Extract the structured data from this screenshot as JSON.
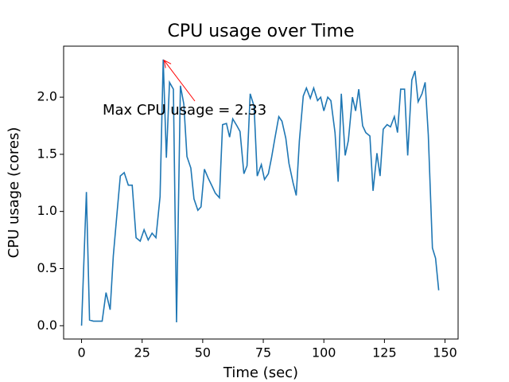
{
  "chart_data": {
    "type": "line",
    "title": "CPU usage over Time",
    "xlabel": "Time (sec)",
    "ylabel": "CPU usage (cores)",
    "annotation": {
      "text": "Max CPU usage = 2.33",
      "color": "#ff0000"
    },
    "xlim": [
      -7.4,
      155.4
    ],
    "ylim": [
      -0.1165,
      2.4465
    ],
    "xticks": [
      0,
      25,
      50,
      75,
      100,
      125,
      150
    ],
    "yticks": [
      {
        "value": 0,
        "label": "0.0"
      },
      0.5,
      {
        "value": 1,
        "label": "1.0"
      },
      1.5,
      {
        "value": 2,
        "label": "2.0"
      }
    ],
    "series": [
      {
        "color": "#1f77b4",
        "x": [
          0,
          2,
          3.3,
          4.9,
          6.5,
          8.5,
          10.1,
          11.8,
          13.1,
          14.7,
          16,
          17.6,
          19.3,
          20.9,
          22.5,
          24.2,
          25.8,
          27.5,
          29.1,
          30.7,
          32.4,
          33.7,
          35,
          36.3,
          37.9,
          39.2,
          40.8,
          42.2,
          43.5,
          45.1,
          46.4,
          48,
          49.3,
          50.7,
          52.3,
          53.9,
          55.2,
          56.9,
          58.2,
          59.8,
          61.1,
          62.4,
          64.1,
          65.4,
          67,
          68.3,
          69.6,
          71.2,
          72.5,
          74.2,
          75.5,
          77.1,
          78.4,
          79.7,
          81.4,
          82.7,
          84.3,
          85.6,
          87.3,
          88.6,
          89.9,
          91.5,
          92.8,
          94.4,
          95.8,
          97.4,
          98.7,
          100,
          101.6,
          102.9,
          104.6,
          105.9,
          107.2,
          108.8,
          110.1,
          111.8,
          113.1,
          114.4,
          116,
          117.3,
          119,
          120.3,
          121.9,
          123.2,
          124.5,
          126.1,
          127.5,
          129.1,
          130.4,
          131.7,
          133.3,
          134.6,
          136.3,
          137.6,
          138.9,
          140.5,
          141.8,
          143.1,
          144.8,
          146.1,
          147.4
        ],
        "values": [
          0,
          1.17,
          0.05,
          0.04,
          0.04,
          0.04,
          0.29,
          0.14,
          0.61,
          1.0,
          1.31,
          1.34,
          1.23,
          1.23,
          0.77,
          0.74,
          0.84,
          0.75,
          0.81,
          0.77,
          1.13,
          2.33,
          1.47,
          2.13,
          2.07,
          0.03,
          2.1,
          1.94,
          1.48,
          1.38,
          1.11,
          1.01,
          1.04,
          1.37,
          1.29,
          1.22,
          1.16,
          1.12,
          1.76,
          1.77,
          1.65,
          1.81,
          1.75,
          1.7,
          1.33,
          1.4,
          2.03,
          1.92,
          1.31,
          1.41,
          1.28,
          1.33,
          1.47,
          1.63,
          1.83,
          1.79,
          1.64,
          1.42,
          1.25,
          1.14,
          1.62,
          2.01,
          2.08,
          1.99,
          2.08,
          1.97,
          2.0,
          1.88,
          2.0,
          1.97,
          1.69,
          1.26,
          2.03,
          1.49,
          1.62,
          2.0,
          1.88,
          2.07,
          1.75,
          1.69,
          1.66,
          1.18,
          1.51,
          1.31,
          1.72,
          1.76,
          1.74,
          1.83,
          1.69,
          2.07,
          2.07,
          1.49,
          2.15,
          2.23,
          1.96,
          2.03,
          2.13,
          1.67,
          0.68,
          0.59,
          0.31
        ]
      }
    ]
  }
}
